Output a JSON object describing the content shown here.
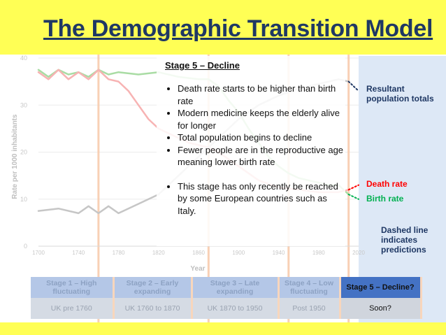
{
  "slide_title": "The Demographic Transition Model",
  "textbox": {
    "heading": "Stage 5 – Decline",
    "bullets": [
      "Death rate starts to be higher than birth rate",
      "Modern medicine keeps the elderly alive for longer",
      "Total population begins to decline",
      "Fewer people are in the reproductive age meaning lower birth rate",
      "This stage has only recently be reached by some European countries such as Italy."
    ]
  },
  "annotations": {
    "population": "Resultant population totals",
    "death": "Death rate",
    "birth": "Birth rate",
    "dashed": "Dashed line indicates predictions"
  },
  "colors": {
    "death_rate": "#ff0000",
    "birth_rate": "#00b050",
    "population": "#1f3864",
    "title": "#1f3864",
    "stage5_header": "#4472c4",
    "stage_header_faded": "#b4c7e7",
    "divider": "#f8cbad"
  },
  "chart_data": {
    "type": "line",
    "xlabel": "Year",
    "ylabel": "Rate per 1000 inhabitants",
    "xlim": [
      1700,
      2020
    ],
    "ylim": [
      0,
      40
    ],
    "x_ticks": [
      "1700",
      "1740",
      "1780",
      "1820",
      "1860",
      "1900",
      "1940",
      "1980",
      "2020"
    ],
    "y_ticks": [
      "0",
      "10",
      "20",
      "30",
      "40"
    ],
    "stage_boundaries": [
      1760,
      1870,
      1950,
      2010
    ],
    "series": [
      {
        "name": "Birth rate",
        "x": [
          1700,
          1710,
          1720,
          1730,
          1740,
          1750,
          1760,
          1770,
          1780,
          1800,
          1820,
          1840,
          1860,
          1870,
          1880,
          1890,
          1900,
          1910,
          1920,
          1930,
          1940,
          1950,
          1960,
          1970,
          1980,
          1990,
          2000,
          2010
        ],
        "values": [
          37.5,
          36,
          37.5,
          36.5,
          37,
          36,
          37.5,
          36.5,
          37,
          36.5,
          37,
          36,
          35.5,
          35.5,
          34,
          31,
          28.5,
          25,
          22,
          19,
          17,
          15.5,
          14.5,
          14,
          13.5,
          13,
          13,
          11
        ]
      },
      {
        "name": "Death rate",
        "x": [
          1700,
          1710,
          1720,
          1730,
          1740,
          1750,
          1760,
          1770,
          1780,
          1790,
          1800,
          1810,
          1820,
          1830,
          1840,
          1850,
          1860,
          1870,
          1880,
          1900,
          1920,
          1940,
          1960,
          1980,
          2000,
          2010
        ],
        "values": [
          37,
          35.5,
          37.5,
          35.5,
          37,
          35.5,
          37.5,
          35.5,
          35,
          33,
          30,
          27,
          25,
          24,
          23,
          22,
          21.5,
          21,
          20,
          17,
          14,
          12.5,
          12,
          11.5,
          11.5,
          12
        ]
      },
      {
        "name": "Resultant population totals",
        "x": [
          1700,
          1720,
          1740,
          1750,
          1760,
          1770,
          1780,
          1800,
          1820,
          1840,
          1860,
          1880,
          1900,
          1920,
          1940,
          1960,
          1980,
          2000,
          2010
        ],
        "values": [
          7.5,
          8,
          7,
          8.5,
          7,
          8.5,
          7,
          9,
          11,
          15,
          19,
          23,
          27,
          30,
          32,
          33.5,
          34.5,
          35.5,
          35
        ]
      },
      {
        "name": "Death rate (prediction)",
        "x": [
          2010,
          2020
        ],
        "values": [
          12,
          13
        ]
      },
      {
        "name": "Birth rate (prediction)",
        "x": [
          2010,
          2020
        ],
        "values": [
          11,
          10
        ]
      },
      {
        "name": "Resultant population totals (prediction)",
        "x": [
          2010,
          2020
        ],
        "values": [
          35,
          33
        ]
      }
    ]
  },
  "stages_table": {
    "headers": [
      "Stage 1 – High fluctuating",
      "Stage 2 – Early expanding",
      "Stage 3 – Late expanding",
      "Stage 4 – Low fluctuating",
      "Stage 5 – Decline?"
    ],
    "periods": [
      "UK pre 1760",
      "UK 1760 to 1870",
      "UK  1870 to 1950",
      "Post 1950",
      "Soon?"
    ]
  }
}
